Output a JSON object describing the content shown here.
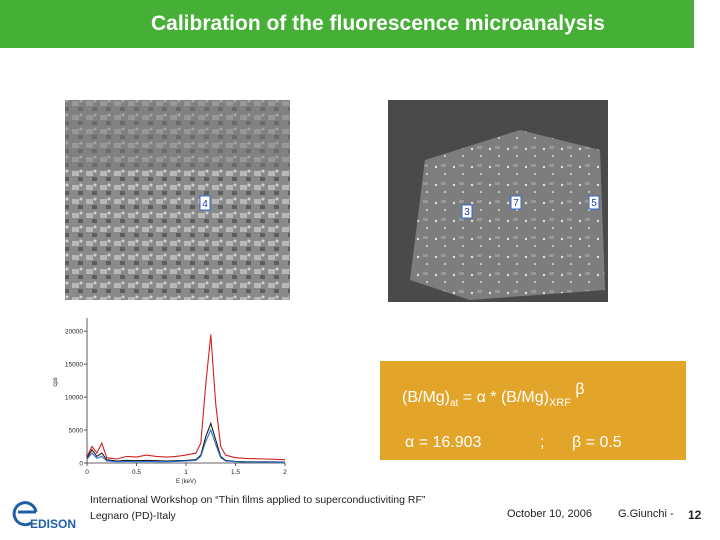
{
  "header": {
    "title": "Calibration of the  fluorescence microanalysis"
  },
  "images": {
    "labels": [
      "4",
      "3",
      "7",
      "5"
    ]
  },
  "chart_data": {
    "type": "line",
    "xlabel": "E (keV)",
    "ylabel": "cps",
    "x": [
      0,
      0.05,
      0.1,
      0.15,
      0.2,
      0.3,
      0.4,
      0.5,
      0.6,
      0.7,
      0.8,
      0.9,
      1.0,
      1.1,
      1.15,
      1.2,
      1.25,
      1.3,
      1.35,
      1.4,
      1.5,
      1.6,
      1.8,
      2.0
    ],
    "series": [
      {
        "color": "#d42020",
        "values": [
          1000,
          2500,
          1500,
          3000,
          800,
          600,
          1000,
          900,
          1200,
          1000,
          900,
          1000,
          1200,
          1500,
          3000,
          12000,
          19500,
          9000,
          2500,
          1200,
          800,
          700,
          600,
          500
        ]
      },
      {
        "color": "#1a1a1a",
        "values": [
          800,
          2000,
          1000,
          1500,
          500,
          300,
          400,
          350,
          400,
          350,
          300,
          350,
          400,
          500,
          1200,
          4000,
          6000,
          3500,
          1000,
          400,
          250,
          200,
          180,
          150
        ]
      },
      {
        "color": "#2a6fd0",
        "values": [
          600,
          1500,
          700,
          1000,
          300,
          200,
          250,
          200,
          250,
          200,
          200,
          250,
          300,
          400,
          1000,
          3300,
          5000,
          2800,
          800,
          300,
          200,
          150,
          120,
          100
        ]
      }
    ],
    "xlim": [
      0,
      2
    ],
    "ylim": [
      0,
      22000
    ],
    "xticks": [
      0,
      0.5,
      1,
      1.5,
      2
    ],
    "yticks": [
      0,
      5000,
      10000,
      15000,
      20000
    ]
  },
  "formula": {
    "lhs": "(B/Mg)",
    "lhs_sub": "at",
    "mid": " = α  * (B/Mg)",
    "mid_sub": "XRF",
    "exp": " β"
  },
  "params": {
    "alpha": "α = 16.903",
    "sep": ";",
    "beta": "β =  0.5"
  },
  "footer": {
    "event_line1": "International Workshop on “Thin films applied to  superconductiviting RF”",
    "event_line2": "Legnaro (PD)-Italy",
    "date": "October 10, 2006",
    "author": "G.Giunchi -",
    "page": "12",
    "logo": "EDISON"
  }
}
